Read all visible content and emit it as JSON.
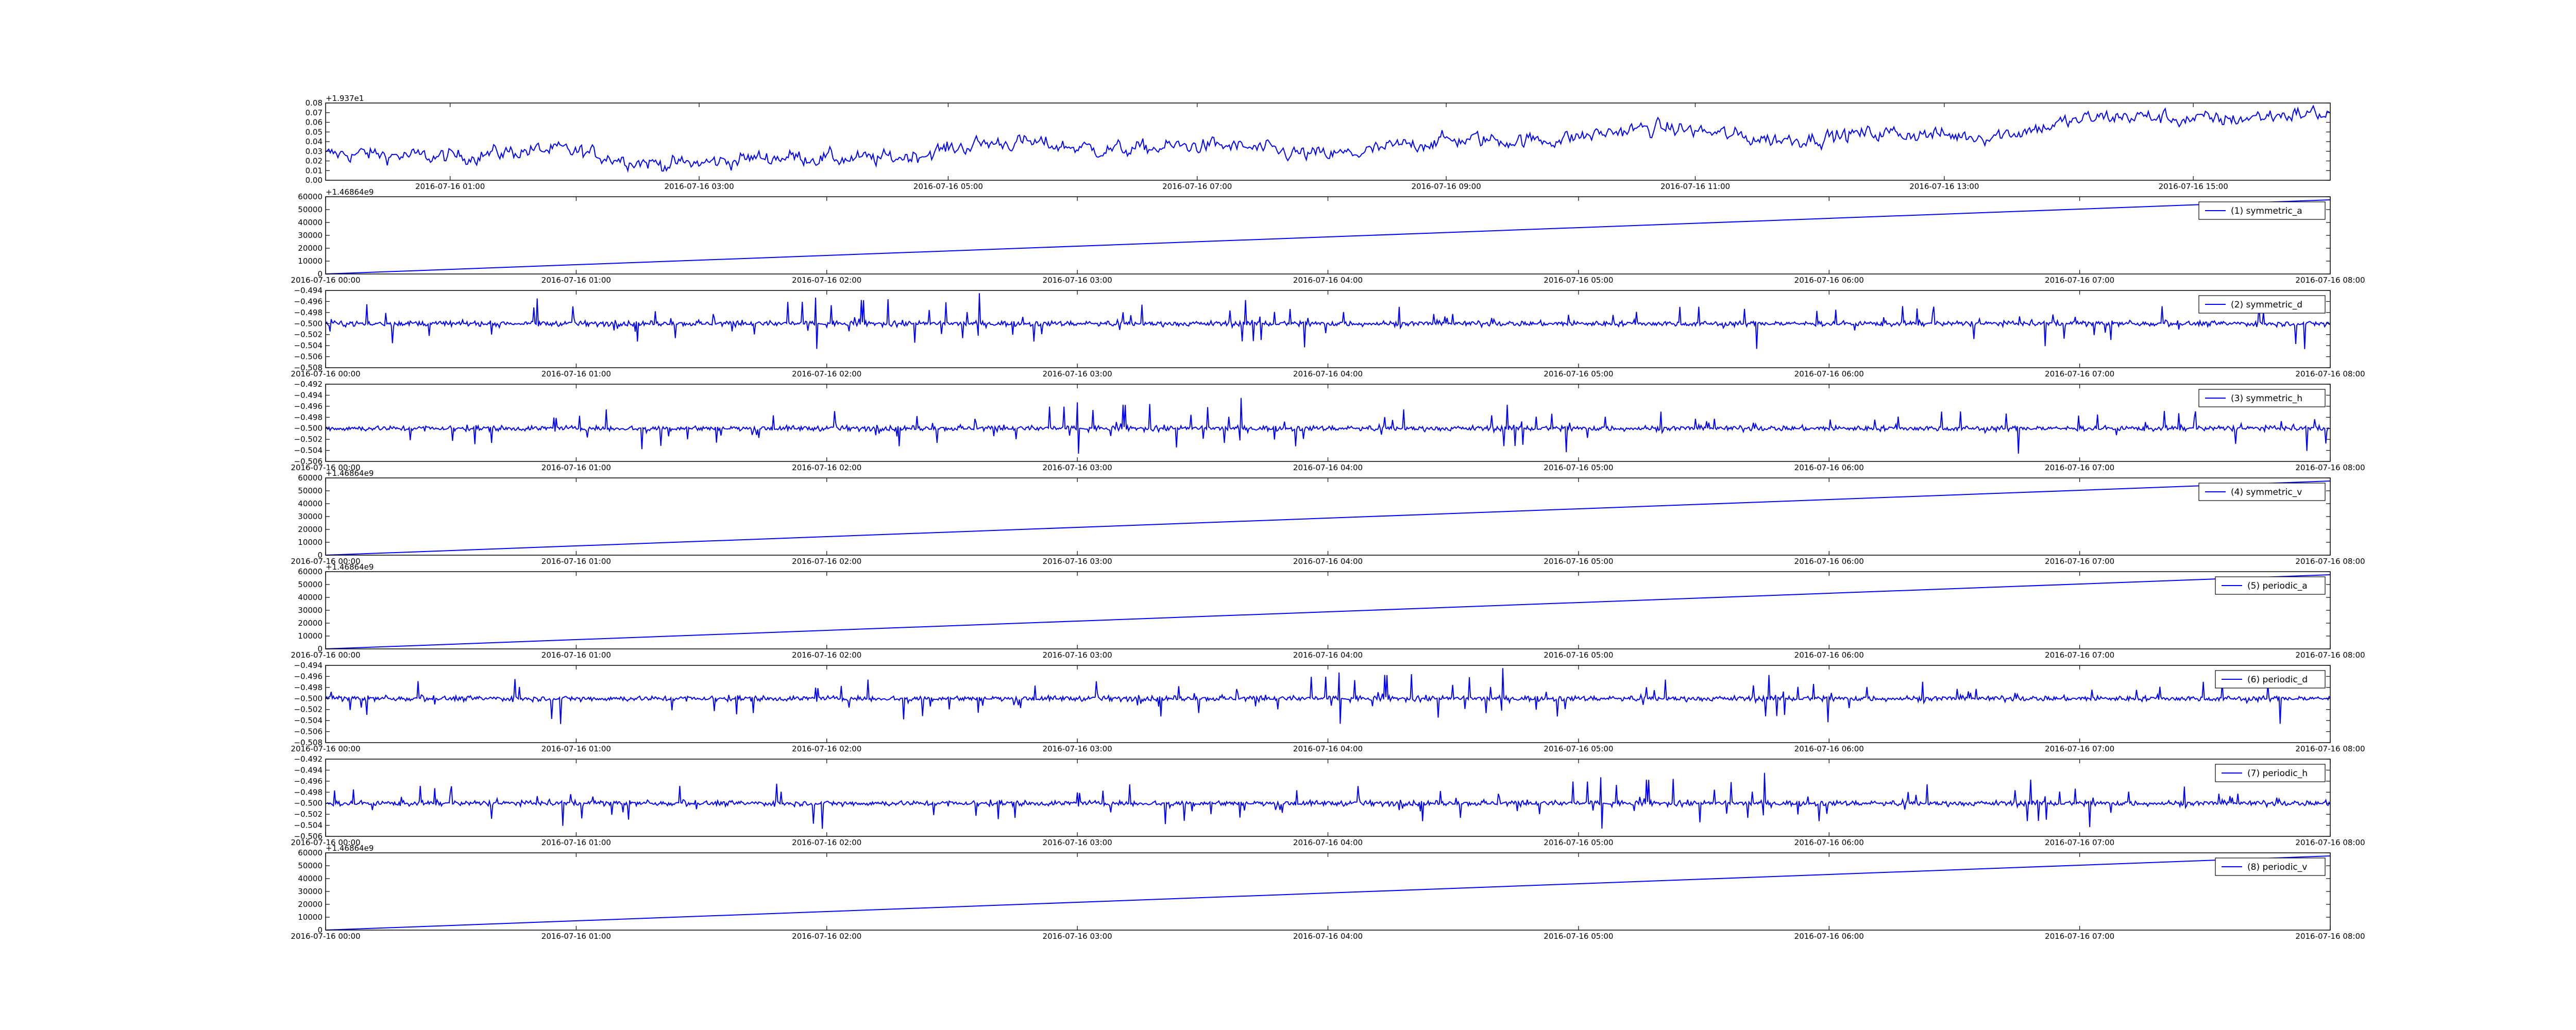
{
  "colors": {
    "line": "#0000ff",
    "axis": "#000000",
    "background": "#ffffff"
  },
  "chart_data": [
    {
      "type": "line",
      "offset_text": "+1.937e1",
      "y_ticks": [
        "0.00",
        "0.01",
        "0.02",
        "0.03",
        "0.04",
        "0.05",
        "0.06",
        "0.07",
        "0.08"
      ],
      "ylim": [
        0.0,
        0.08
      ],
      "x_ticks": [
        "2016-07-16 01:00",
        "2016-07-16 03:00",
        "2016-07-16 05:00",
        "2016-07-16 07:00",
        "2016-07-16 09:00",
        "2016-07-16 11:00",
        "2016-07-16 13:00",
        "2016-07-16 15:00"
      ],
      "xlim": [
        "2016-07-16 00:00",
        "2016-07-16 16:06"
      ],
      "series": [
        {
          "kind": "noise",
          "baseline_start": 0.022,
          "baseline_end": 0.065,
          "noise": 0.012
        }
      ]
    },
    {
      "type": "line",
      "offset_text": "+1.46864e9",
      "y_ticks": [
        "0",
        "10000",
        "20000",
        "30000",
        "40000",
        "50000",
        "60000"
      ],
      "ylim": [
        0,
        60000
      ],
      "x_ticks": [
        "2016-07-16 00:00",
        "2016-07-16 01:00",
        "2016-07-16 02:00",
        "2016-07-16 03:00",
        "2016-07-16 04:00",
        "2016-07-16 05:00",
        "2016-07-16 06:00",
        "2016-07-16 07:00",
        "2016-07-16 08:00"
      ],
      "xlim": [
        "2016-07-16 00:00",
        "2016-07-16 08:00"
      ],
      "legend": "(1) symmetric_a",
      "series": [
        {
          "name": "(1) symmetric_a",
          "kind": "linear",
          "start": 0,
          "end": 57600
        }
      ]
    },
    {
      "type": "line",
      "offset_text": "",
      "y_ticks": [
        "−0.508",
        "−0.506",
        "−0.504",
        "−0.502",
        "−0.500",
        "−0.498",
        "−0.496",
        "−0.494"
      ],
      "ylim": [
        -0.508,
        -0.494
      ],
      "x_ticks": [
        "2016-07-16 00:00",
        "2016-07-16 01:00",
        "2016-07-16 02:00",
        "2016-07-16 03:00",
        "2016-07-16 04:00",
        "2016-07-16 05:00",
        "2016-07-16 06:00",
        "2016-07-16 07:00",
        "2016-07-16 08:00"
      ],
      "xlim": [
        "2016-07-16 00:00",
        "2016-07-16 08:00"
      ],
      "legend": "(2) symmetric_d",
      "series": [
        {
          "name": "(2) symmetric_d",
          "kind": "spiky",
          "baseline": -0.5,
          "noise": 0.0008,
          "spike": 0.0055
        }
      ]
    },
    {
      "type": "line",
      "offset_text": "",
      "y_ticks": [
        "−0.506",
        "−0.504",
        "−0.502",
        "−0.500",
        "−0.498",
        "−0.496",
        "−0.494",
        "−0.492"
      ],
      "ylim": [
        -0.506,
        -0.492
      ],
      "x_ticks": [
        "2016-07-16 00:00",
        "2016-07-16 01:00",
        "2016-07-16 02:00",
        "2016-07-16 03:00",
        "2016-07-16 04:00",
        "2016-07-16 05:00",
        "2016-07-16 06:00",
        "2016-07-16 07:00",
        "2016-07-16 08:00"
      ],
      "xlim": [
        "2016-07-16 00:00",
        "2016-07-16 08:00"
      ],
      "legend": "(3) symmetric_h",
      "series": [
        {
          "name": "(3) symmetric_h",
          "kind": "spiky",
          "baseline": -0.5,
          "noise": 0.0008,
          "spike": 0.0055
        }
      ]
    },
    {
      "type": "line",
      "offset_text": "+1.46864e9",
      "y_ticks": [
        "0",
        "10000",
        "20000",
        "30000",
        "40000",
        "50000",
        "60000"
      ],
      "ylim": [
        0,
        60000
      ],
      "x_ticks": [
        "2016-07-16 00:00",
        "2016-07-16 01:00",
        "2016-07-16 02:00",
        "2016-07-16 03:00",
        "2016-07-16 04:00",
        "2016-07-16 05:00",
        "2016-07-16 06:00",
        "2016-07-16 07:00",
        "2016-07-16 08:00"
      ],
      "xlim": [
        "2016-07-16 00:00",
        "2016-07-16 08:00"
      ],
      "legend": "(4) symmetric_v",
      "series": [
        {
          "name": "(4) symmetric_v",
          "kind": "linear",
          "start": 0,
          "end": 57600
        }
      ]
    },
    {
      "type": "line",
      "offset_text": "+1.46864e9",
      "y_ticks": [
        "0",
        "10000",
        "20000",
        "30000",
        "40000",
        "50000",
        "60000"
      ],
      "ylim": [
        0,
        60000
      ],
      "x_ticks": [
        "2016-07-16 00:00",
        "2016-07-16 01:00",
        "2016-07-16 02:00",
        "2016-07-16 03:00",
        "2016-07-16 04:00",
        "2016-07-16 05:00",
        "2016-07-16 06:00",
        "2016-07-16 07:00",
        "2016-07-16 08:00"
      ],
      "xlim": [
        "2016-07-16 00:00",
        "2016-07-16 08:00"
      ],
      "legend": "(5) periodic_a",
      "series": [
        {
          "name": "(5) periodic_a",
          "kind": "linear",
          "start": 0,
          "end": 57600
        }
      ]
    },
    {
      "type": "line",
      "offset_text": "",
      "y_ticks": [
        "−0.508",
        "−0.506",
        "−0.504",
        "−0.502",
        "−0.500",
        "−0.498",
        "−0.496",
        "−0.494"
      ],
      "ylim": [
        -0.508,
        -0.494
      ],
      "x_ticks": [
        "2016-07-16 00:00",
        "2016-07-16 01:00",
        "2016-07-16 02:00",
        "2016-07-16 03:00",
        "2016-07-16 04:00",
        "2016-07-16 05:00",
        "2016-07-16 06:00",
        "2016-07-16 07:00",
        "2016-07-16 08:00"
      ],
      "xlim": [
        "2016-07-16 00:00",
        "2016-07-16 08:00"
      ],
      "legend": "(6) periodic_d",
      "series": [
        {
          "name": "(6) periodic_d",
          "kind": "spiky",
          "baseline": -0.5,
          "noise": 0.0008,
          "spike": 0.0055
        }
      ]
    },
    {
      "type": "line",
      "offset_text": "",
      "y_ticks": [
        "−0.506",
        "−0.504",
        "−0.502",
        "−0.500",
        "−0.498",
        "−0.496",
        "−0.494",
        "−0.492"
      ],
      "ylim": [
        -0.506,
        -0.492
      ],
      "x_ticks": [
        "2016-07-16 00:00",
        "2016-07-16 01:00",
        "2016-07-16 02:00",
        "2016-07-16 03:00",
        "2016-07-16 04:00",
        "2016-07-16 05:00",
        "2016-07-16 06:00",
        "2016-07-16 07:00",
        "2016-07-16 08:00"
      ],
      "xlim": [
        "2016-07-16 00:00",
        "2016-07-16 08:00"
      ],
      "legend": "(7) periodic_h",
      "series": [
        {
          "name": "(7) periodic_h",
          "kind": "spiky",
          "baseline": -0.5,
          "noise": 0.0008,
          "spike": 0.0055
        }
      ]
    },
    {
      "type": "line",
      "offset_text": "+1.46864e9",
      "y_ticks": [
        "0",
        "10000",
        "20000",
        "30000",
        "40000",
        "50000",
        "60000"
      ],
      "ylim": [
        0,
        60000
      ],
      "x_ticks": [
        "2016-07-16 00:00",
        "2016-07-16 01:00",
        "2016-07-16 02:00",
        "2016-07-16 03:00",
        "2016-07-16 04:00",
        "2016-07-16 05:00",
        "2016-07-16 06:00",
        "2016-07-16 07:00",
        "2016-07-16 08:00"
      ],
      "xlim": [
        "2016-07-16 00:00",
        "2016-07-16 08:00"
      ],
      "legend": "(8) periodic_v",
      "series": [
        {
          "name": "(8) periodic_v",
          "kind": "linear",
          "start": 0,
          "end": 57600
        }
      ]
    }
  ]
}
